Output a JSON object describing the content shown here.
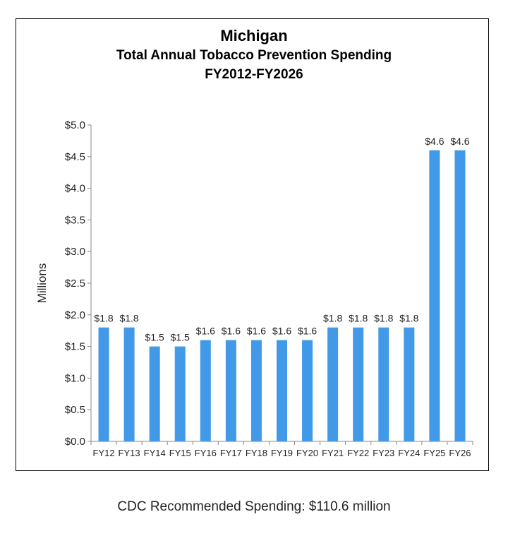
{
  "chart_data": {
    "type": "bar",
    "title": "Michigan",
    "subtitle": [
      "Total Annual Tobacco Prevention Spending",
      "FY2012-FY2026"
    ],
    "ylabel": "Millions",
    "xlabel": "",
    "ylim": [
      0,
      5
    ],
    "yticks": [
      "$0.0",
      "$0.5",
      "$1.0",
      "$1.5",
      "$2.0",
      "$2.5",
      "$3.0",
      "$3.5",
      "$4.0",
      "$4.5",
      "$5.0"
    ],
    "categories": [
      "FY12",
      "FY13",
      "FY14",
      "FY15",
      "FY16",
      "FY17",
      "FY18",
      "FY19",
      "FY20",
      "FY21",
      "FY22",
      "FY23",
      "FY24",
      "FY25",
      "FY26"
    ],
    "values": [
      1.8,
      1.8,
      1.5,
      1.5,
      1.6,
      1.6,
      1.6,
      1.6,
      1.6,
      1.8,
      1.8,
      1.8,
      1.8,
      4.6,
      4.6
    ],
    "data_labels": [
      "$1.8",
      "$1.8",
      "$1.5",
      "$1.5",
      "$1.6",
      "$1.6",
      "$1.6",
      "$1.6",
      "$1.6",
      "$1.8",
      "$1.8",
      "$1.8",
      "$1.8",
      "$4.6",
      "$4.6"
    ],
    "grid": false,
    "legend": "none",
    "bar_color": "#4299e8"
  },
  "footer": "CDC Recommended Spending: $110.6 million"
}
